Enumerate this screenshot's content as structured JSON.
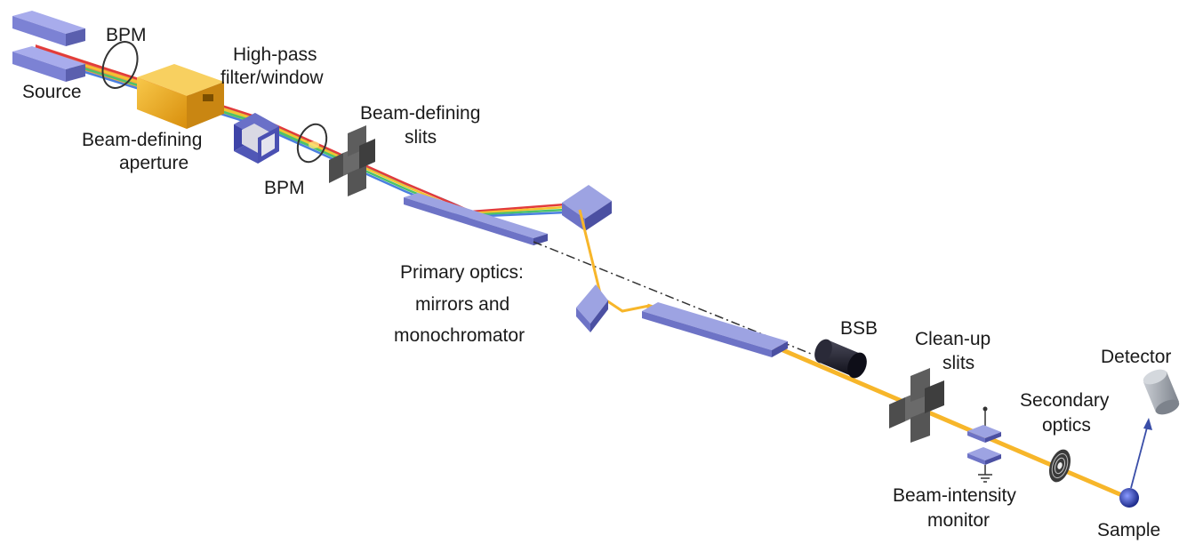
{
  "labels": {
    "bpm_top": "BPM",
    "source": "Source",
    "high_pass_line1": "High-pass",
    "high_pass_line2": "filter/window",
    "beam_defining_aperture_line1": "Beam-defining",
    "beam_defining_aperture_line2": "aperture",
    "beam_defining_slits_line1": "Beam-defining",
    "beam_defining_slits_line2": "slits",
    "bpm_bottom": "BPM",
    "primary_optics_line1": "Primary optics:",
    "primary_optics_line2": "mirrors and",
    "primary_optics_line3": "monochromator",
    "bsb": "BSB",
    "cleanup_slits_line1": "Clean-up",
    "cleanup_slits_line2": "slits",
    "detector": "Detector",
    "secondary_optics_line1": "Secondary",
    "secondary_optics_line2": "optics",
    "beam_intensity_line1": "Beam-intensity",
    "beam_intensity_line2": "monitor",
    "sample": "Sample"
  },
  "colors": {
    "component_blue": "#8c92d6",
    "component_blue_dark": "#5a5fae",
    "aperture_gold": "#f2b21c",
    "beam_gold": "#f7b62a",
    "slit_gray": "#4a4a4a",
    "bsb_black": "#1e1e2a",
    "detector_gray": "#9aa0a8"
  }
}
